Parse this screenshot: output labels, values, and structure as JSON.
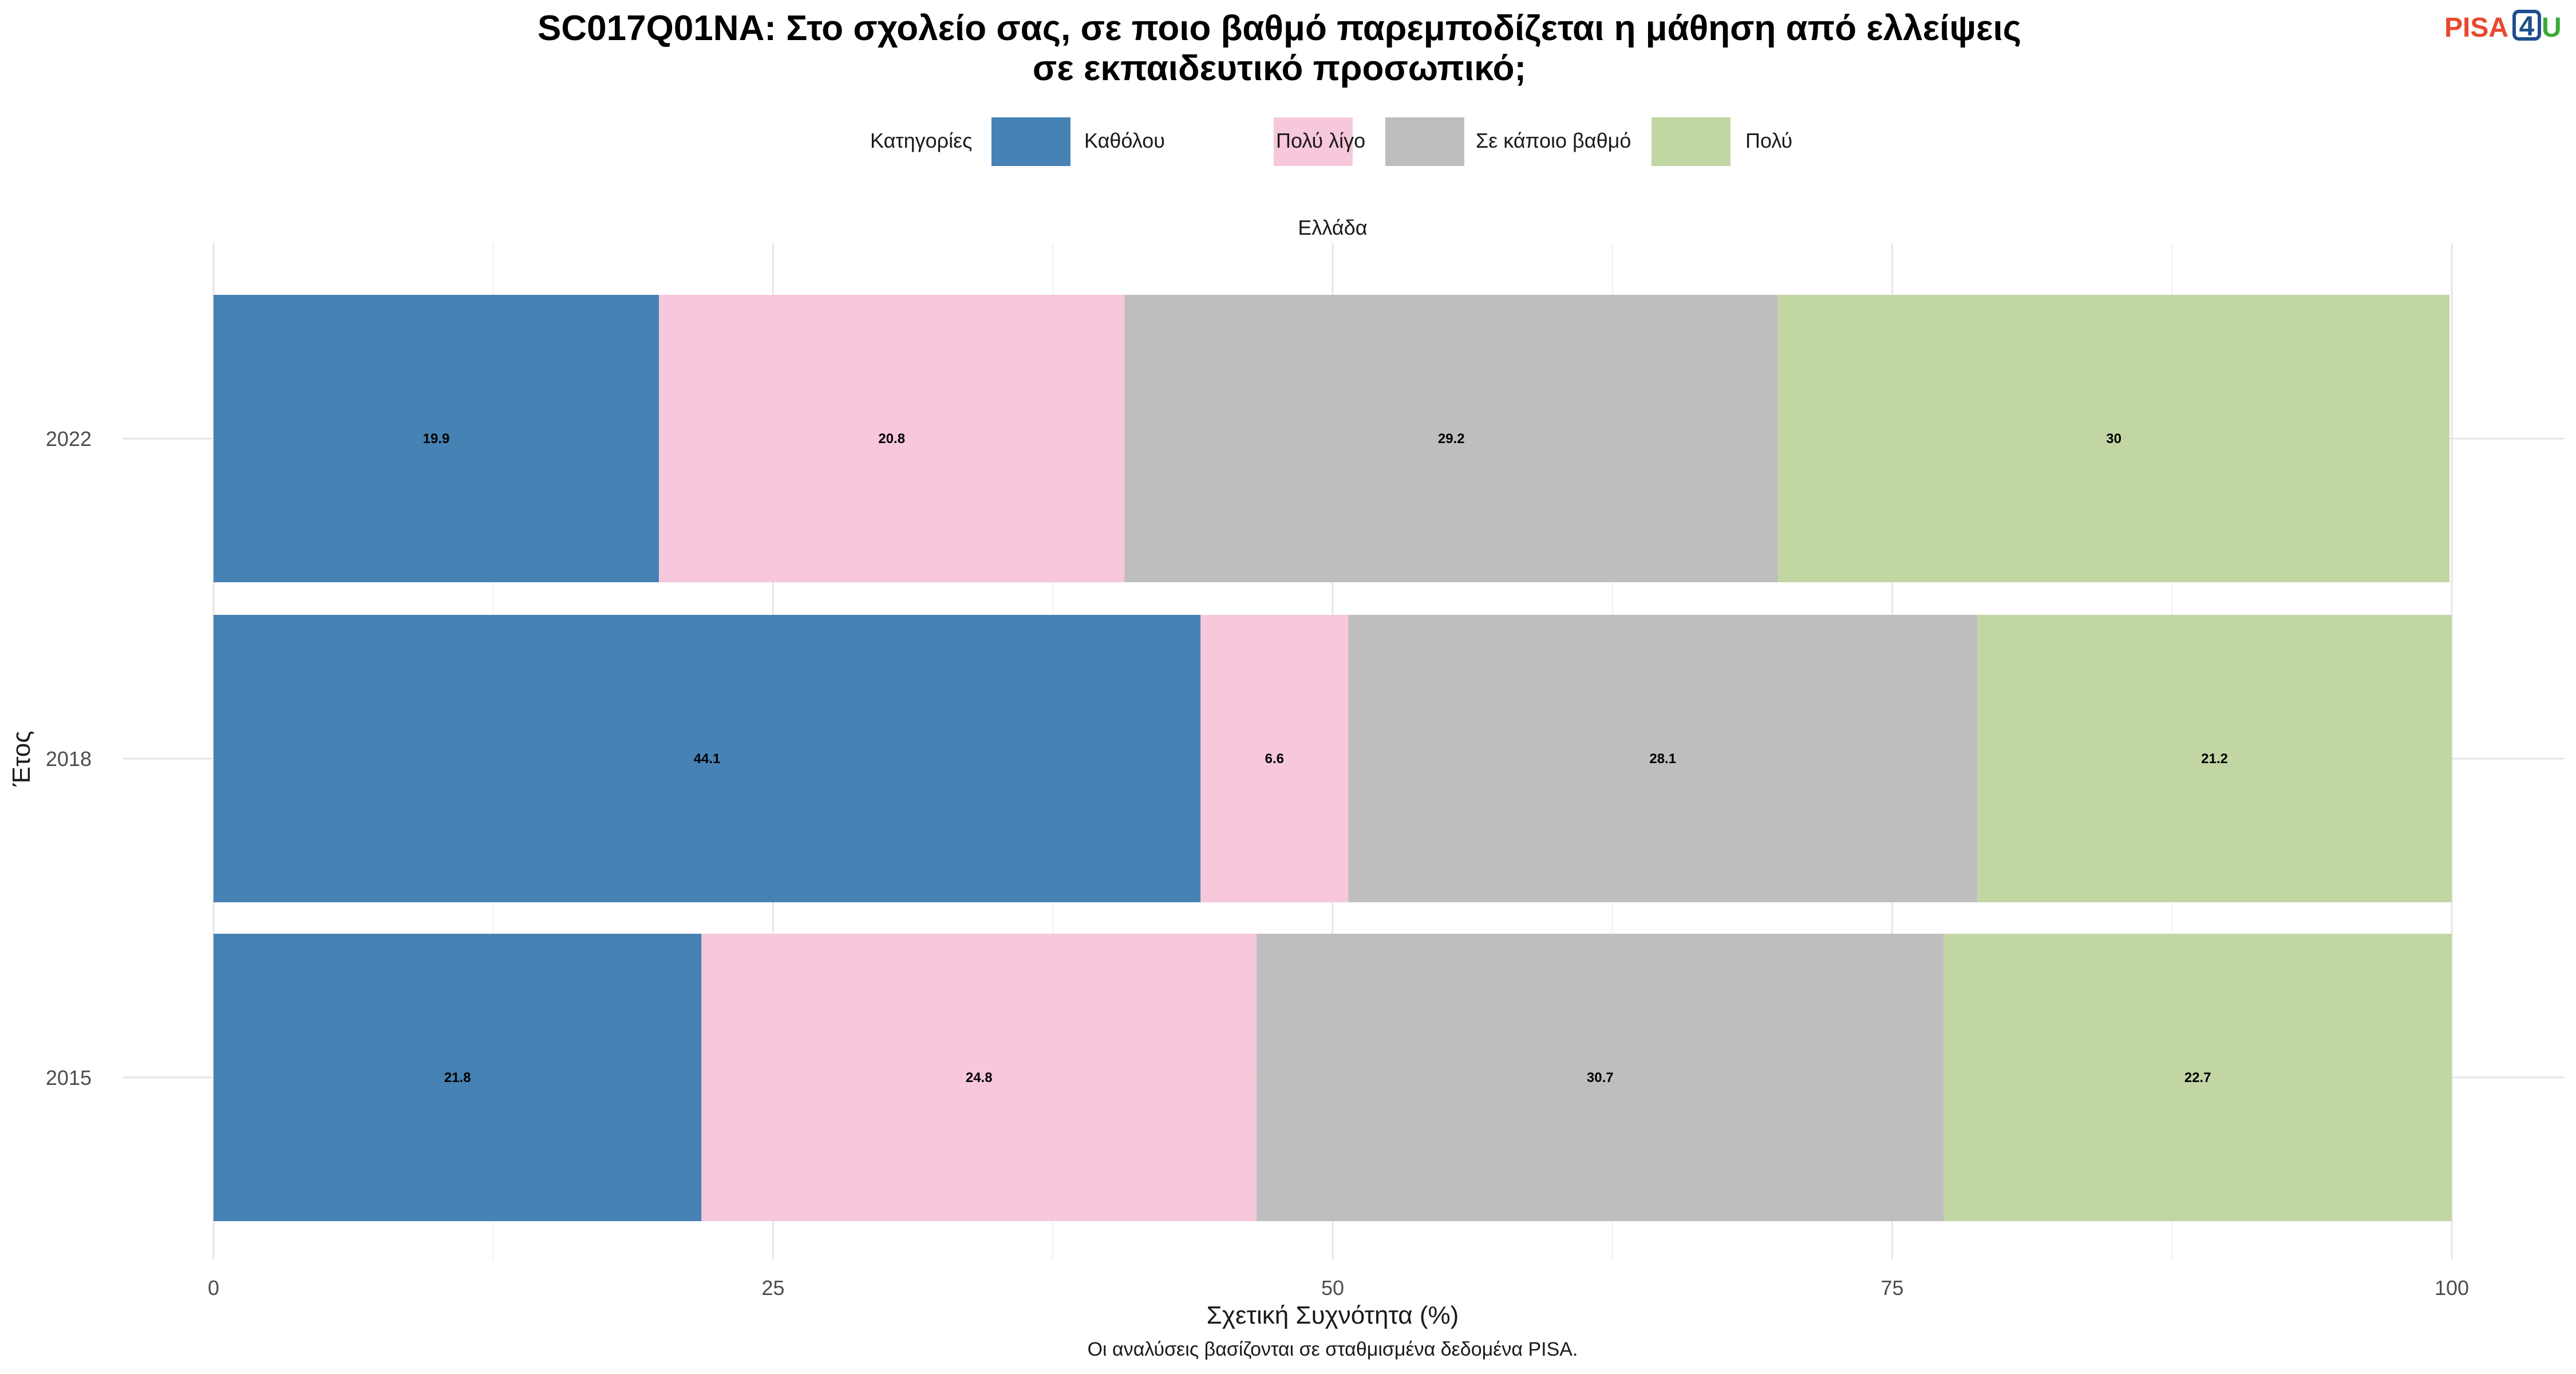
{
  "title_lines": [
    "SC017Q01NA: Στο σχολείο σας, σε ποιο βαθμό παρεμποδίζεται η μάθηση από ελλείψεις",
    "σε εκπαιδευτικό προσωπικό;"
  ],
  "logo": {
    "text_a": "PISA",
    "text_b": "4",
    "text_c": "U"
  },
  "legend": {
    "title": "Κατηγορίες"
  },
  "caption": "Οι αναλύσεις βασίζονται σε σταθμισμένα δεδομένα PISA.",
  "colors": {
    "Καθόλου": "#4682b4",
    "Πολύ λίγο": "#f7c7dc",
    "Σε κάποιο βαθμό": "#bebebe",
    "Πολύ": "#c2d6a4"
  },
  "chart_data": {
    "type": "bar",
    "orientation": "horizontal",
    "stacked": true,
    "facet": "Ελλάδα",
    "categories": [
      "2022",
      "2018",
      "2015"
    ],
    "series": [
      {
        "name": "Καθόλου",
        "values": [
          19.9,
          44.1,
          21.8
        ]
      },
      {
        "name": "Πολύ λίγο",
        "values": [
          20.8,
          6.6,
          24.8
        ]
      },
      {
        "name": "Σε κάποιο βαθμό",
        "values": [
          29.2,
          28.1,
          30.7
        ]
      },
      {
        "name": "Πολύ",
        "values": [
          30,
          21.2,
          22.7
        ]
      }
    ],
    "xlabel": "Σχετική Συχνότητα (%)",
    "ylabel": "Έτος",
    "xlim": [
      0,
      100
    ],
    "xticks": [
      0,
      25,
      50,
      75,
      100
    ],
    "grid": true,
    "legend_position": "top"
  }
}
